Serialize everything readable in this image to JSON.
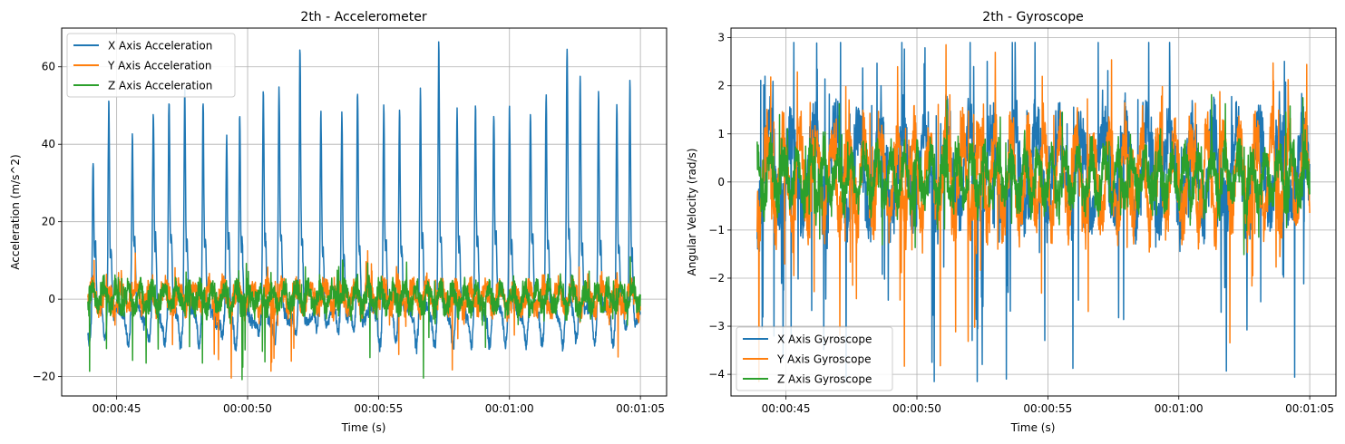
{
  "chart_data": [
    {
      "type": "line",
      "title": "2th - Accelerometer",
      "xlabel": "Time (s)",
      "ylabel": "Acceleration (m/s^2)",
      "x_range_s": [
        43.9,
        65.0
      ],
      "xlim_s": [
        42.9,
        66.0
      ],
      "ylim": [
        -25,
        70
      ],
      "x_ticks": [
        {
          "value": 45,
          "label": "00:00:45"
        },
        {
          "value": 50,
          "label": "00:00:50"
        },
        {
          "value": 55,
          "label": "00:00:55"
        },
        {
          "value": 60,
          "label": "00:01:00"
        },
        {
          "value": 65,
          "label": "00:01:05"
        }
      ],
      "y_ticks": [
        {
          "value": -20,
          "label": "−20"
        },
        {
          "value": 0,
          "label": "0"
        },
        {
          "value": 20,
          "label": "20"
        },
        {
          "value": 40,
          "label": "40"
        },
        {
          "value": 60,
          "label": "60"
        }
      ],
      "grid": true,
      "legend_position": "upper-left",
      "series": [
        {
          "name": "X Axis Acceleration",
          "color": "#1f77b4",
          "kind": "x_acc"
        },
        {
          "name": "Y Axis Acceleration",
          "color": "#ff7f0e",
          "kind": "y_acc"
        },
        {
          "name": "Z Axis Acceleration",
          "color": "#2ca02c",
          "kind": "z_acc"
        }
      ],
      "peaks_x": [
        {
          "x": 44.1,
          "y": 38
        },
        {
          "x": 44.7,
          "y": 53
        },
        {
          "x": 45.6,
          "y": 41
        },
        {
          "x": 46.4,
          "y": 47
        },
        {
          "x": 47.0,
          "y": 51
        },
        {
          "x": 47.6,
          "y": 55
        },
        {
          "x": 48.3,
          "y": 51
        },
        {
          "x": 49.2,
          "y": 40
        },
        {
          "x": 49.7,
          "y": 47
        },
        {
          "x": 50.6,
          "y": 51
        },
        {
          "x": 51.2,
          "y": 53
        },
        {
          "x": 52.0,
          "y": 62
        },
        {
          "x": 52.8,
          "y": 48
        },
        {
          "x": 53.6,
          "y": 50
        },
        {
          "x": 54.2,
          "y": 53
        },
        {
          "x": 55.2,
          "y": 50
        },
        {
          "x": 55.8,
          "y": 51
        },
        {
          "x": 56.6,
          "y": 54
        },
        {
          "x": 57.3,
          "y": 65
        },
        {
          "x": 58.0,
          "y": 49
        },
        {
          "x": 58.7,
          "y": 50
        },
        {
          "x": 59.4,
          "y": 47
        },
        {
          "x": 60.0,
          "y": 51
        },
        {
          "x": 60.8,
          "y": 48
        },
        {
          "x": 61.4,
          "y": 54
        },
        {
          "x": 62.2,
          "y": 64
        },
        {
          "x": 62.7,
          "y": 60
        },
        {
          "x": 63.4,
          "y": 55
        },
        {
          "x": 64.1,
          "y": 52
        },
        {
          "x": 64.6,
          "y": 56
        }
      ]
    },
    {
      "type": "line",
      "title": "2th - Gyroscope",
      "xlabel": "Time (s)",
      "ylabel": "Angular Velocity (rad/s)",
      "x_range_s": [
        43.9,
        65.0
      ],
      "xlim_s": [
        42.9,
        66.0
      ],
      "ylim": [
        -4.45,
        3.2
      ],
      "x_ticks": [
        {
          "value": 45,
          "label": "00:00:45"
        },
        {
          "value": 50,
          "label": "00:00:50"
        },
        {
          "value": 55,
          "label": "00:00:55"
        },
        {
          "value": 60,
          "label": "00:01:00"
        },
        {
          "value": 65,
          "label": "00:01:05"
        }
      ],
      "y_ticks": [
        {
          "value": -4,
          "label": "−4"
        },
        {
          "value": -3,
          "label": "−3"
        },
        {
          "value": -2,
          "label": "−2"
        },
        {
          "value": -1,
          "label": "−1"
        },
        {
          "value": 0,
          "label": "0"
        },
        {
          "value": 1,
          "label": "1"
        },
        {
          "value": 2,
          "label": "2"
        },
        {
          "value": 3,
          "label": "3"
        }
      ],
      "grid": true,
      "legend_position": "lower-left",
      "series": [
        {
          "name": "X Axis Gyroscope",
          "color": "#1f77b4",
          "kind": "x_gyr"
        },
        {
          "name": "Y Axis Gyroscope",
          "color": "#ff7f0e",
          "kind": "y_gyr"
        },
        {
          "name": "Z Axis Gyroscope",
          "color": "#2ca02c",
          "kind": "z_gyr"
        }
      ]
    }
  ]
}
